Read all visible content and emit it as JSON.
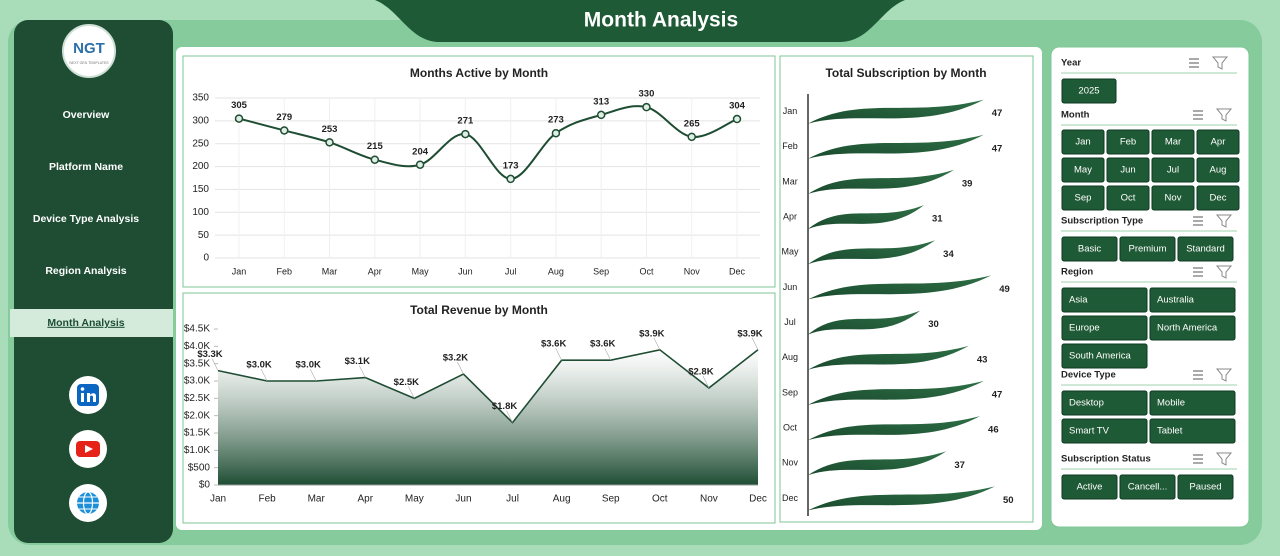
{
  "header": {
    "title": "Month Analysis"
  },
  "sidebar": {
    "logo": "NGT",
    "logo_tagline": "NEXT GEN TEMPLATES",
    "menu": [
      "Overview",
      "Platform Name",
      "Device Type Analysis",
      "Region Analysis",
      "Month Analysis"
    ]
  },
  "chart_data": [
    {
      "type": "line",
      "title": "Months Active by Month",
      "color": "#1e4d33",
      "categories": [
        "Jan",
        "Feb",
        "Mar",
        "Apr",
        "May",
        "Jun",
        "Jul",
        "Aug",
        "Sep",
        "Oct",
        "Nov",
        "Dec"
      ],
      "values": [
        305,
        279,
        253,
        215,
        204,
        271,
        173,
        273,
        313,
        330,
        265,
        304
      ],
      "ylim": [
        0,
        350
      ],
      "yticks": [
        0,
        50,
        100,
        150,
        200,
        250,
        300,
        350
      ],
      "grid": true
    },
    {
      "type": "area",
      "title": "Total Revenue by Month",
      "color": "#1e4d33",
      "categories": [
        "Jan",
        "Feb",
        "Mar",
        "Apr",
        "May",
        "Jun",
        "Jul",
        "Aug",
        "Sep",
        "Oct",
        "Nov",
        "Dec"
      ],
      "values": [
        3300,
        3000,
        3000,
        3100,
        2500,
        3200,
        1800,
        3600,
        3600,
        3900,
        2800,
        3900
      ],
      "value_labels": [
        "$3.3K",
        "$3.0K",
        "$3.0K",
        "$3.1K",
        "$2.5K",
        "$3.2K",
        "$1.8K",
        "$3.6K",
        "$3.6K",
        "$3.9K",
        "$2.8K",
        "$3.9K"
      ],
      "ylim": [
        0,
        4500
      ],
      "yticks": [
        {
          "value": 0,
          "label": "$0"
        },
        {
          "value": 500,
          "label": "$500"
        },
        {
          "value": 1000,
          "label": "$1.0K"
        },
        {
          "value": 1500,
          "label": "$1.5K"
        },
        {
          "value": 2000,
          "label": "$2.0K"
        },
        {
          "value": 2500,
          "label": "$2.5K"
        },
        {
          "value": 3000,
          "label": "$3.0K"
        },
        {
          "value": 3500,
          "label": "$3.5K"
        },
        {
          "value": 4000,
          "label": "$4.0K"
        },
        {
          "value": 4500,
          "label": "$4.5K"
        }
      ],
      "grid": false
    },
    {
      "type": "hbar",
      "title": "Total Subscription by Month",
      "color": "#1f5a36",
      "categories": [
        "Jan",
        "Feb",
        "Mar",
        "Apr",
        "May",
        "Jun",
        "Jul",
        "Aug",
        "Sep",
        "Oct",
        "Nov",
        "Dec"
      ],
      "values": [
        47,
        47,
        39,
        31,
        34,
        49,
        30,
        43,
        47,
        46,
        37,
        50
      ],
      "xlim": [
        0,
        50
      ]
    }
  ],
  "slicers": [
    {
      "title": "Year",
      "items": [
        "2025"
      ]
    },
    {
      "title": "Month",
      "items": [
        "Jan",
        "Feb",
        "Mar",
        "Apr",
        "May",
        "Jun",
        "Jul",
        "Aug",
        "Sep",
        "Oct",
        "Nov",
        "Dec"
      ]
    },
    {
      "title": "Subscription Type",
      "items": [
        "Basic",
        "Premium",
        "Standard"
      ]
    },
    {
      "title": "Region",
      "items": [
        "Asia",
        "Australia",
        "Europe",
        "North America",
        "South America"
      ]
    },
    {
      "title": "Device Type",
      "items": [
        "Desktop",
        "Mobile",
        "Smart TV",
        "Tablet"
      ]
    },
    {
      "title": "Subscription Status",
      "items": [
        "Active",
        "Cancell...",
        "Paused"
      ]
    }
  ]
}
